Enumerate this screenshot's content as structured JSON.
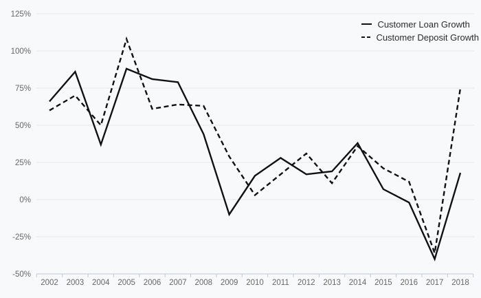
{
  "chart_data": {
    "type": "line",
    "title": "",
    "xlabel": "",
    "ylabel": "",
    "x": [
      "2002",
      "2003",
      "2004",
      "2005",
      "2006",
      "2007",
      "2008",
      "2009",
      "2010",
      "2011",
      "2012",
      "2013",
      "2014",
      "2015",
      "2016",
      "2017",
      "2018"
    ],
    "series": [
      {
        "name": "Customer Loan Growth",
        "line_style": "solid",
        "values": [
          66,
          86,
          37,
          88,
          81,
          79,
          44,
          -10,
          16,
          28,
          17,
          19,
          38,
          7,
          -2,
          -40,
          18
        ]
      },
      {
        "name": "Customer Deposit Growth",
        "line_style": "dashed",
        "values": [
          60,
          70,
          50,
          108,
          61,
          64,
          63,
          29,
          3,
          17,
          31,
          11,
          36,
          21,
          12,
          -36,
          75
        ]
      }
    ],
    "ylim": [
      -50,
      125
    ],
    "y_ticks": [
      125,
      100,
      75,
      50,
      25,
      0,
      -25,
      -50
    ],
    "y_tick_suffix": "%",
    "grid": "horizontal",
    "legend_position": "top-right"
  },
  "colors": {
    "background": "#f8f9fa",
    "line": "#111111",
    "gridline": "#e7e8ea",
    "axis": "#bfc7d5",
    "tick_label": "#666666",
    "legend_text": "#2b2b2b"
  }
}
